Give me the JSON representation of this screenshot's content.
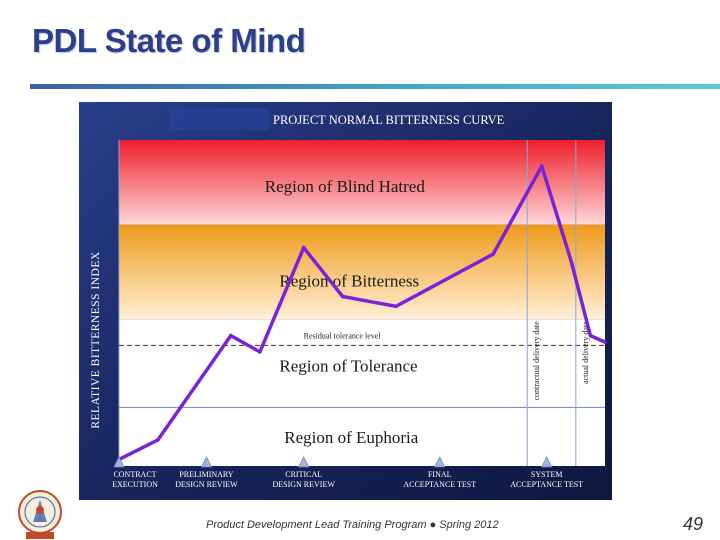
{
  "slide": {
    "title": "PDL State of Mind",
    "footer": "Product Development Lead Training Program  ●  Spring 2012",
    "page_number": "49"
  },
  "chart_data": {
    "type": "line",
    "title": "PROJECT NORMAL BITTERNESS CURVE",
    "ylabel": "RELATIVE BITTERNESS INDEX",
    "xlabel": "",
    "ylim": [
      0,
      100
    ],
    "xlim": [
      0,
      100
    ],
    "regions": [
      {
        "name": "Region of Blind Hatred",
        "from": 74,
        "to": 100,
        "color_top": "#ee1e2c",
        "color_bottom": "#fdd8d8"
      },
      {
        "name": "Region of Bitterness",
        "from": 45,
        "to": 74,
        "color_top": "#ef9a1a",
        "color_bottom": "#fff0d8"
      },
      {
        "name": "Region of Tolerance",
        "from": 18,
        "to": 45,
        "color_top": "#ffffff",
        "color_bottom": "#ffffff"
      },
      {
        "name": "Region of Euphoria",
        "from": 0,
        "to": 18,
        "color_top": "#ffffff",
        "color_bottom": "#ffffff"
      }
    ],
    "reference_lines": [
      {
        "axis": "y",
        "value": 37,
        "label": "Residual tolerance level",
        "style": "dashed"
      },
      {
        "axis": "y",
        "value": 18,
        "label": "",
        "style": "solid"
      },
      {
        "axis": "x",
        "value": 84,
        "label": "contractual delivery date",
        "style": "solid"
      },
      {
        "axis": "x",
        "value": 94,
        "label": "actual delivery date",
        "style": "solid"
      }
    ],
    "series": [
      {
        "name": "",
        "color": "#7b22d6",
        "x": [
          0,
          8,
          23,
          29,
          38,
          46,
          57,
          77,
          87,
          93,
          97,
          100
        ],
        "y": [
          2,
          8,
          40,
          35,
          67,
          52,
          49,
          65,
          92,
          63,
          40,
          38
        ]
      }
    ],
    "milestones": [
      {
        "x": 0,
        "label": [
          "CONTRACT",
          "EXECUTION"
        ]
      },
      {
        "x": 18,
        "label": [
          "PRELIMINARY",
          "DESIGN REVIEW"
        ]
      },
      {
        "x": 38,
        "label": [
          "CRITICAL",
          "DESIGN REVIEW"
        ]
      },
      {
        "x": 66,
        "label": [
          "FINAL",
          "ACCEPTANCE TEST"
        ]
      },
      {
        "x": 88,
        "label": [
          "SYSTEM",
          "ACCEPTANCE TEST"
        ]
      }
    ],
    "grid": false,
    "legend": "none"
  },
  "colors": {
    "title_blue": "#2c3f8a",
    "panel_navy": "#1b2c6b",
    "curve_purple": "#7b22d6",
    "milestone_triangle": "#9fb4e0"
  }
}
